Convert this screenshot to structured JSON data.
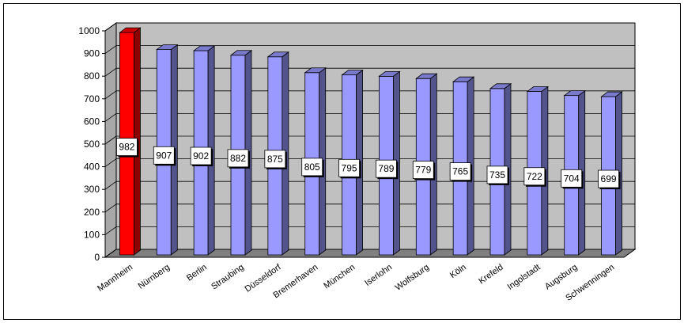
{
  "chart_data": {
    "type": "bar",
    "title": "",
    "xlabel": "",
    "ylabel": "",
    "ylim": [
      0,
      1000
    ],
    "yticks": [
      0,
      100,
      200,
      300,
      400,
      500,
      600,
      700,
      800,
      900,
      1000
    ],
    "categories": [
      "Mannheim",
      "Nürnberg",
      "Berlin",
      "Straubing",
      "Düsseldorf",
      "Bremerhaven",
      "München",
      "Iserlohn",
      "Wolfsburg",
      "Köln",
      "Krefeld",
      "Ingolstadt",
      "Augsburg",
      "Schwenningen"
    ],
    "values": [
      982,
      907,
      902,
      882,
      875,
      805,
      795,
      789,
      779,
      765,
      735,
      722,
      704,
      699
    ],
    "data_labels": [
      "982",
      "907",
      "902",
      "882",
      "875",
      "805",
      "795",
      "789",
      "779",
      "765",
      "735",
      "722",
      "704",
      "699"
    ],
    "grid": true,
    "legend": "none",
    "style": "3d-column",
    "colors": {
      "highlight": "#ff0000",
      "bar": "#9999ff",
      "wall": "#c0c0c0",
      "floor": "#808080"
    },
    "highlight_index": 0
  }
}
